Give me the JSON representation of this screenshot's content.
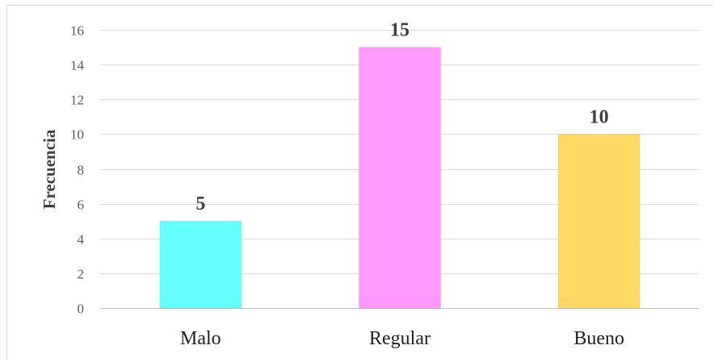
{
  "chart_data": {
    "type": "bar",
    "title": "",
    "xlabel": "",
    "ylabel": "Frecuencia",
    "categories": [
      "Malo",
      "Regular",
      "Bueno"
    ],
    "values": [
      5,
      15,
      10
    ],
    "data_labels": [
      "5",
      "15",
      "10"
    ],
    "colors": [
      "#66ffff",
      "#ff99ff",
      "#ffd966"
    ],
    "ylim": [
      0,
      16
    ],
    "yticks": [
      0,
      2,
      4,
      6,
      8,
      10,
      12,
      14,
      16
    ],
    "grid": true,
    "legend": "none"
  }
}
